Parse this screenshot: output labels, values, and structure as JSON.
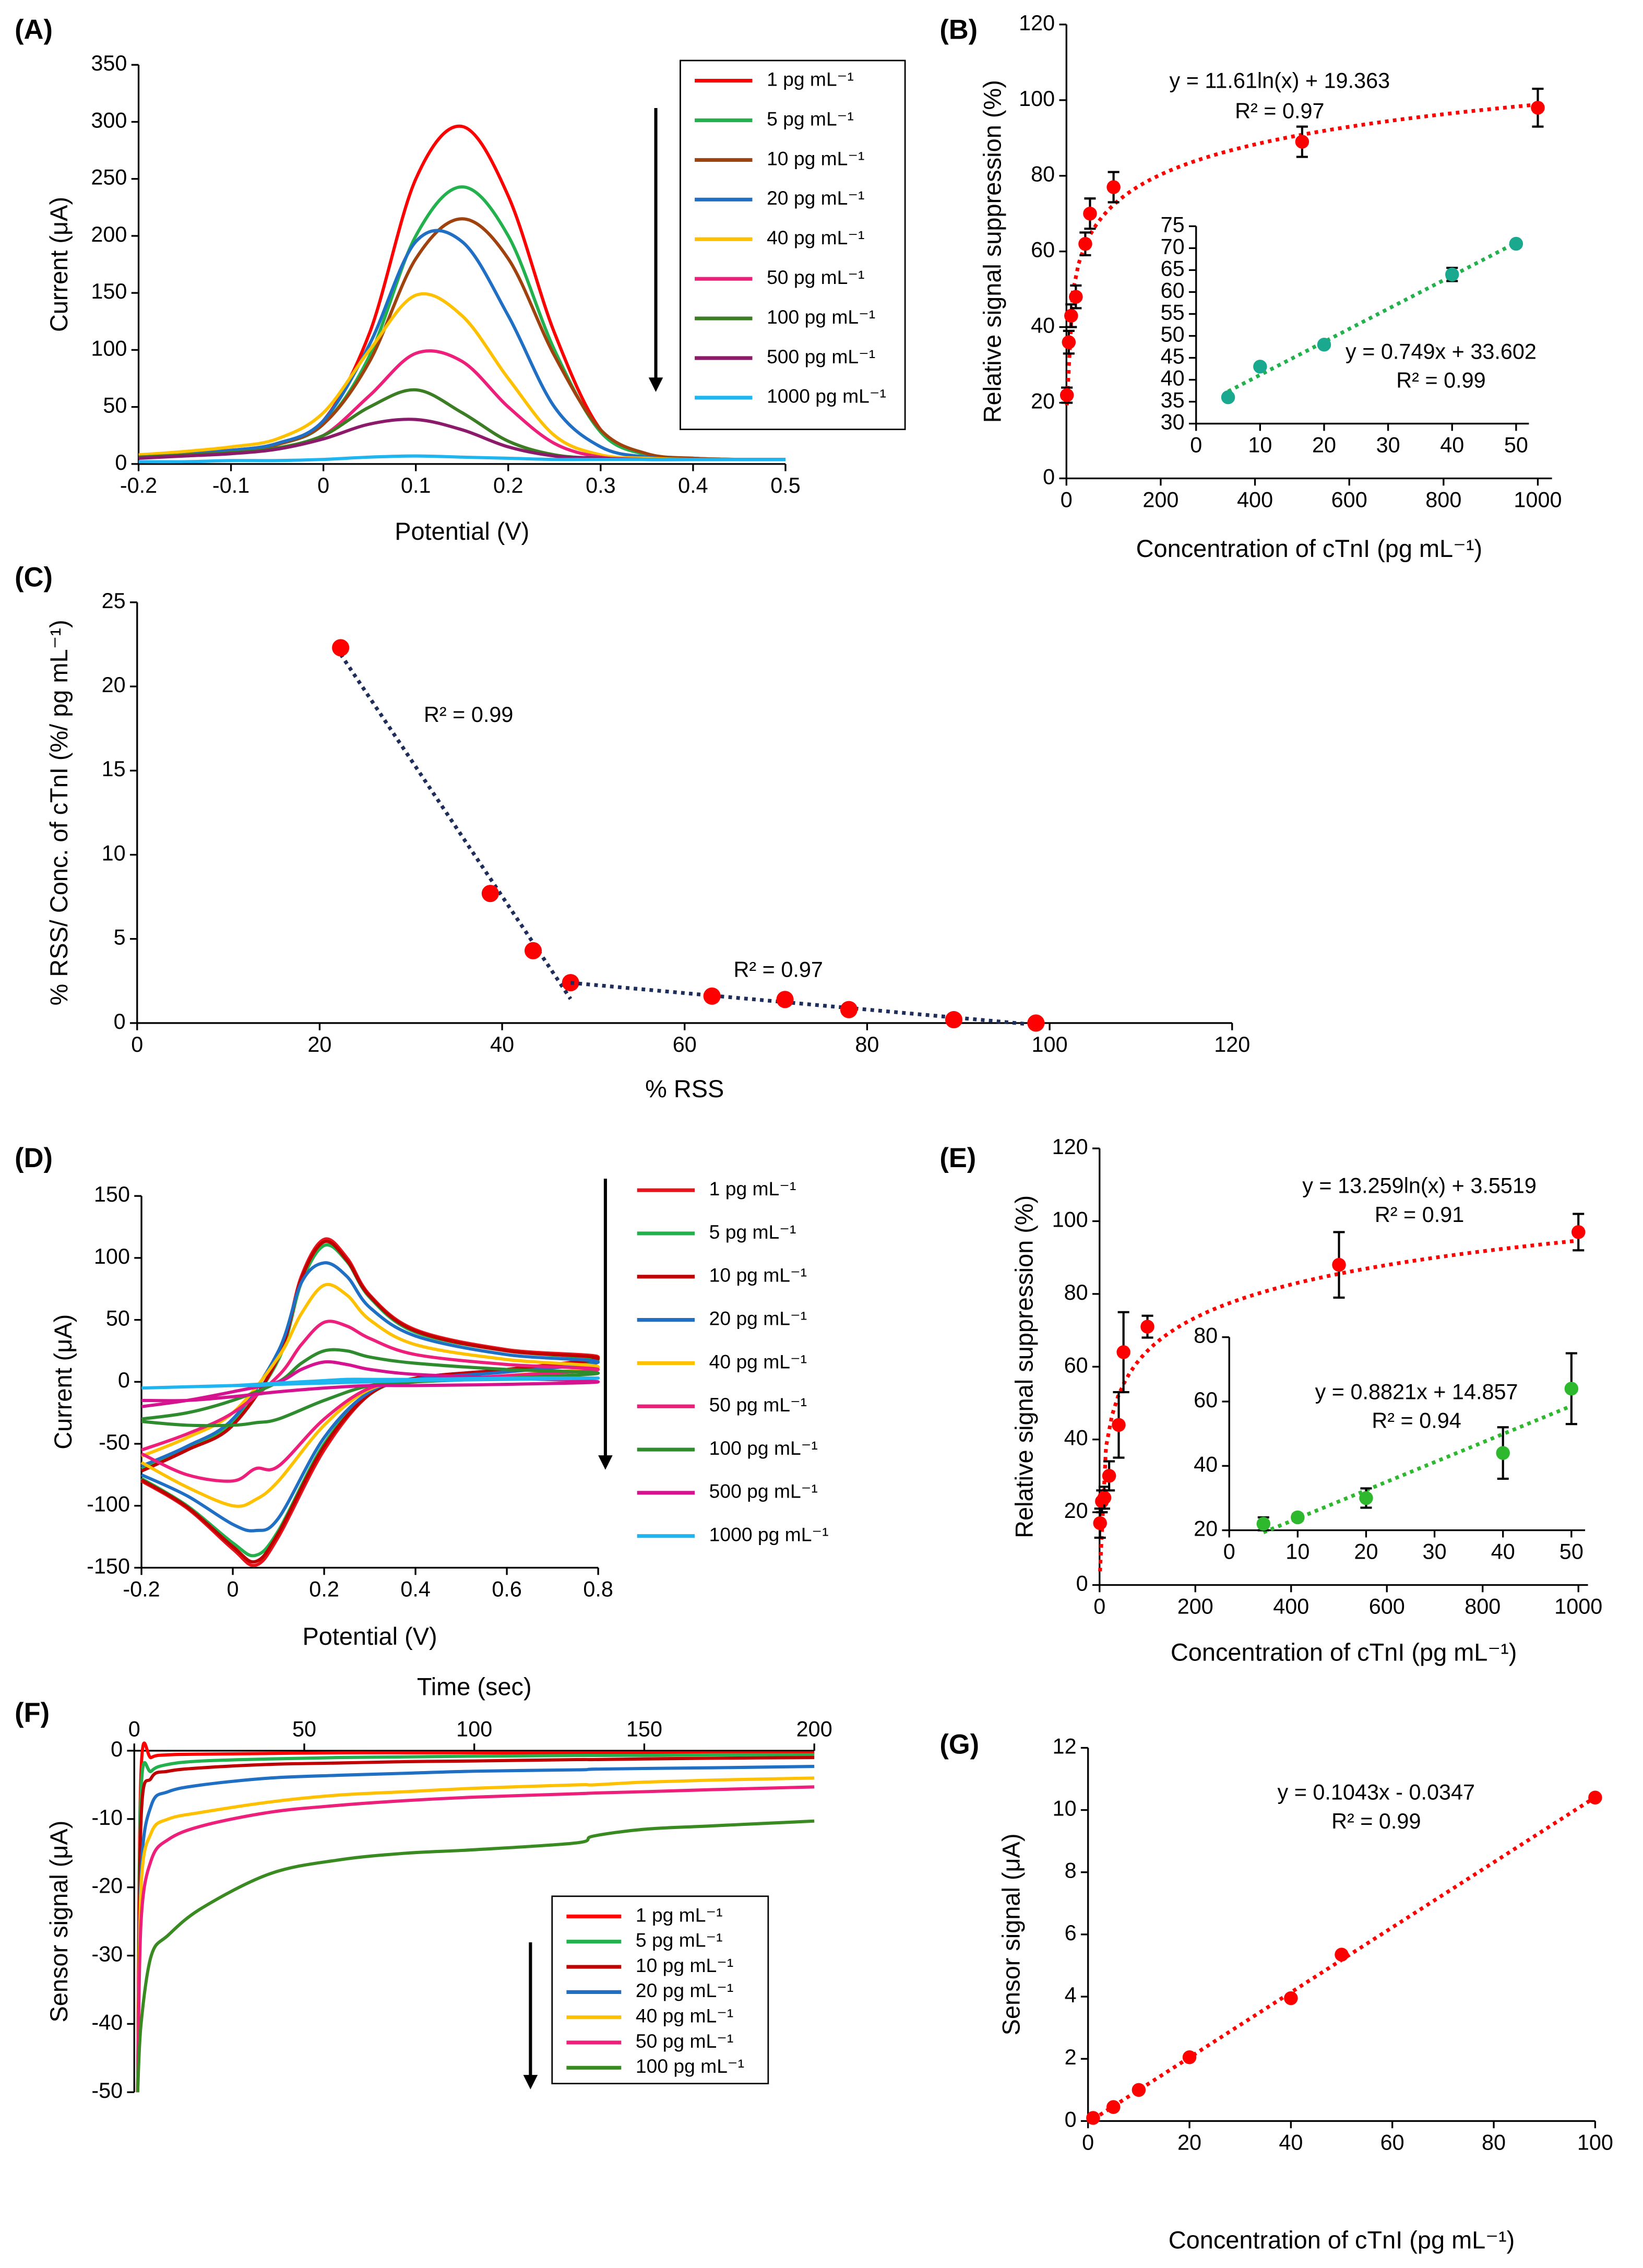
{
  "chart_data": [
    {
      "type": "line",
      "panel_label": "(A)",
      "xlabel": "Potential (V)",
      "ylabel": "Current (μA)",
      "xlim": [
        -0.2,
        0.5
      ],
      "ylim": [
        0,
        350
      ],
      "xticks": [
        -0.2,
        -0.1,
        0,
        0.1,
        0.2,
        0.3,
        0.4,
        0.5
      ],
      "yticks": [
        0,
        50,
        100,
        150,
        200,
        250,
        300,
        350
      ],
      "legend": true,
      "x": [
        -0.2,
        -0.15,
        -0.1,
        -0.05,
        0,
        0.05,
        0.1,
        0.15,
        0.2,
        0.25,
        0.3,
        0.35,
        0.4,
        0.45,
        0.5
      ],
      "series": [
        {
          "name": "1 pg mL⁻¹",
          "color": "#ff0000",
          "values": [
            8,
            10,
            12,
            18,
            38,
            115,
            250,
            296,
            235,
            115,
            30,
            8,
            5,
            4,
            4
          ]
        },
        {
          "name": "5 pg mL⁻¹",
          "color": "#22b14c",
          "values": [
            7,
            9,
            11,
            17,
            35,
            95,
            200,
            243,
            200,
            100,
            28,
            8,
            5,
            4,
            4
          ]
        },
        {
          "name": "10 pg mL⁻¹",
          "color": "#a0420d",
          "values": [
            7,
            9,
            11,
            17,
            35,
            90,
            180,
            215,
            180,
            95,
            30,
            9,
            5,
            4,
            4
          ]
        },
        {
          "name": "20 pg mL⁻¹",
          "color": "#1f6fc5",
          "values": [
            7,
            9,
            12,
            18,
            38,
            105,
            195,
            195,
            130,
            50,
            15,
            6,
            4,
            4,
            4
          ]
        },
        {
          "name": "40 pg mL⁻¹",
          "color": "#ffc000",
          "values": [
            8,
            11,
            15,
            22,
            45,
            100,
            148,
            130,
            75,
            25,
            8,
            5,
            4,
            4,
            4
          ]
        },
        {
          "name": "50 pg mL⁻¹",
          "color": "#ee1f7a",
          "values": [
            6,
            8,
            10,
            14,
            25,
            60,
            97,
            90,
            50,
            18,
            6,
            4,
            4,
            4,
            4
          ]
        },
        {
          "name": "100 pg mL⁻¹",
          "color": "#3a7d22",
          "values": [
            6,
            8,
            10,
            14,
            25,
            50,
            65,
            45,
            20,
            8,
            5,
            4,
            4,
            4,
            4
          ]
        },
        {
          "name": "500 pg mL⁻¹",
          "color": "#8b1a6b",
          "values": [
            5,
            7,
            9,
            13,
            22,
            35,
            39,
            30,
            15,
            7,
            5,
            4,
            4,
            4,
            4
          ]
        },
        {
          "name": "1000 pg mL⁻¹",
          "color": "#1fb5f0",
          "values": [
            2,
            2,
            3,
            3,
            4,
            6,
            7,
            6,
            5,
            4,
            4,
            4,
            4,
            4,
            4
          ]
        }
      ]
    },
    {
      "type": "scatter",
      "panel_label": "(B)",
      "xlabel": "Concentration of cTnI (pg mL⁻¹)",
      "ylabel": "Relative signal suppression (%)",
      "xlim": [
        0,
        1030
      ],
      "ylim": [
        0,
        120
      ],
      "xticks": [
        0,
        200,
        400,
        600,
        800,
        1000
      ],
      "yticks": [
        0,
        20,
        40,
        60,
        80,
        100,
        120
      ],
      "annotations": [
        "y = 11.61ln(x) + 19.363",
        "R² = 0.97"
      ],
      "series": [
        {
          "color": "#ff0000",
          "trendline": "log",
          "trendline_color": "#ff0000",
          "x": [
            1,
            5,
            10,
            20,
            40,
            50,
            100,
            500,
            1000
          ],
          "values": [
            22,
            36,
            43,
            48,
            62,
            70,
            77,
            89,
            98
          ],
          "errors": [
            2,
            3,
            3,
            3,
            3,
            4,
            4,
            4,
            5
          ]
        }
      ],
      "inset": {
        "type": "scatter",
        "xlim": [
          0,
          52
        ],
        "ylim": [
          30,
          75
        ],
        "xticks": [
          0,
          10,
          20,
          30,
          40,
          50
        ],
        "yticks": [
          30,
          35,
          40,
          45,
          50,
          55,
          60,
          65,
          70,
          75
        ],
        "annotations": [
          "y = 0.749x + 33.602",
          "R² = 0.99"
        ],
        "series": [
          {
            "color": "#1aa88f",
            "trendline": "linear",
            "trendline_color": "#22b14c",
            "x": [
              5,
              10,
              20,
              40,
              50
            ],
            "values": [
              36,
              43,
              48,
              64,
              71
            ],
            "errors": [
              0.5,
              0.5,
              0.5,
              1.5,
              0.5
            ]
          }
        ]
      }
    },
    {
      "type": "scatter",
      "panel_label": "(C)",
      "xlabel": "% RSS",
      "ylabel": "% RSS/ Conc. of cTnI (%/ pg mL⁻¹)",
      "xlim": [
        0,
        120
      ],
      "ylim": [
        0,
        25
      ],
      "xticks": [
        0,
        20,
        40,
        60,
        80,
        100,
        120
      ],
      "yticks": [
        0,
        5,
        10,
        15,
        20,
        25
      ],
      "annotations": [
        "R² = 0.99",
        "R² = 0.97"
      ],
      "series": [
        {
          "color": "#ff0000",
          "trendline": "linear",
          "trendline_color": "#1f2d5a",
          "x": [
            22.3,
            38.7,
            43.4,
            47.5
          ],
          "values": [
            22.3,
            7.7,
            4.3,
            2.4
          ]
        },
        {
          "color": "#ff0000",
          "trendline": "linear",
          "trendline_color": "#1f2d5a",
          "x": [
            63,
            71,
            78,
            89.5,
            98.5
          ],
          "values": [
            1.6,
            1.4,
            0.8,
            0.2,
            0
          ]
        }
      ]
    },
    {
      "type": "line",
      "panel_label": "(D)",
      "xlabel": "Potential (V)",
      "ylabel": "Current (μA)",
      "xlim": [
        -0.2,
        0.8
      ],
      "ylim": [
        -150,
        150
      ],
      "xticks": [
        -0.2,
        0,
        0.2,
        0.4,
        0.6,
        0.8
      ],
      "yticks": [
        -150,
        -100,
        -50,
        0,
        50,
        100,
        150
      ],
      "legend": true,
      "x": [
        -0.2,
        -0.1,
        0,
        0.1,
        0.15,
        0.2,
        0.25,
        0.3,
        0.4,
        0.6,
        0.8,
        0.6,
        0.4,
        0.3,
        0.2,
        0.1,
        0.05,
        0,
        -0.1,
        -0.2
      ],
      "series": [
        {
          "name": "1 pg mL⁻¹",
          "color": "#e8141b",
          "values": [
            -72,
            -55,
            -35,
            20,
            85,
            115,
            100,
            70,
            42,
            26,
            20,
            10,
            3,
            -10,
            -55,
            -125,
            -148,
            -135,
            -102,
            -80
          ]
        },
        {
          "name": "5 pg mL⁻¹",
          "color": "#22b14c",
          "values": [
            -70,
            -53,
            -33,
            18,
            80,
            110,
            97,
            68,
            40,
            25,
            18,
            9,
            2,
            -10,
            -50,
            -120,
            -140,
            -130,
            -100,
            -78
          ]
        },
        {
          "name": "10 pg mL⁻¹",
          "color": "#c00000",
          "values": [
            -72,
            -55,
            -35,
            20,
            83,
            113,
            98,
            69,
            41,
            25,
            19,
            10,
            3,
            -10,
            -52,
            -122,
            -145,
            -133,
            -101,
            -79
          ]
        },
        {
          "name": "20 pg mL⁻¹",
          "color": "#1f6fc5",
          "values": [
            -68,
            -52,
            -30,
            25,
            80,
            96,
            85,
            60,
            37,
            22,
            16,
            8,
            2,
            -8,
            -45,
            -110,
            -120,
            -115,
            -92,
            -75
          ]
        },
        {
          "name": "40 pg mL⁻¹",
          "color": "#ffc000",
          "values": [
            -60,
            -45,
            -25,
            20,
            55,
            78,
            70,
            50,
            30,
            18,
            12,
            5,
            0,
            -6,
            -35,
            -80,
            -95,
            -100,
            -85,
            -65
          ]
        },
        {
          "name": "50 pg mL⁻¹",
          "color": "#ee1f7a",
          "values": [
            -55,
            -42,
            -25,
            5,
            30,
            48,
            45,
            35,
            22,
            14,
            10,
            5,
            0,
            -5,
            -30,
            -68,
            -70,
            -80,
            -75,
            -58
          ]
        },
        {
          "name": "100 pg mL⁻¹",
          "color": "#2e8b2e",
          "values": [
            -30,
            -25,
            -15,
            0,
            15,
            25,
            25,
            20,
            15,
            10,
            7,
            3,
            0,
            -3,
            -15,
            -30,
            -33,
            -35,
            -35,
            -32
          ]
        },
        {
          "name": "500 pg mL⁻¹",
          "color": "#d6138f",
          "values": [
            -20,
            -15,
            -8,
            0,
            10,
            16,
            14,
            10,
            6,
            3,
            0,
            -2,
            -3,
            -3,
            -5,
            -8,
            -10,
            -12,
            -15,
            -15
          ]
        },
        {
          "name": "1000 pg mL⁻¹",
          "color": "#1fb5f0",
          "values": [
            -5,
            -4,
            -3,
            -1,
            0,
            1,
            2,
            2,
            2,
            3,
            3,
            2,
            1,
            0,
            -1,
            -2,
            -3,
            -3,
            -4,
            -5
          ]
        }
      ]
    },
    {
      "type": "scatter",
      "panel_label": "(E)",
      "xlabel": "Concentration of cTnI (pg mL⁻¹)",
      "ylabel": "Relative signal suppression (%)",
      "xlim": [
        0,
        1020
      ],
      "ylim": [
        0,
        120
      ],
      "xticks": [
        0,
        200,
        400,
        600,
        800,
        1000
      ],
      "yticks": [
        0,
        20,
        40,
        60,
        80,
        100,
        120
      ],
      "annotations": [
        "y = 13.259ln(x) + 3.5519",
        "R² = 0.91"
      ],
      "series": [
        {
          "color": "#ff0000",
          "trendline": "log",
          "trendline_color": "#ff0000",
          "x": [
            1,
            5,
            10,
            20,
            40,
            50,
            100,
            500,
            1000
          ],
          "values": [
            17,
            23,
            24,
            30,
            44,
            64,
            71,
            88,
            97
          ],
          "errors": [
            4,
            3,
            3,
            4,
            9,
            11,
            3,
            9,
            5
          ]
        }
      ],
      "inset": {
        "type": "scatter",
        "xlim": [
          0,
          52
        ],
        "ylim": [
          20,
          80
        ],
        "xticks": [
          0,
          10,
          20,
          30,
          40,
          50
        ],
        "yticks": [
          20,
          40,
          60,
          80
        ],
        "annotations": [
          "y = 0.8821x + 14.857",
          "R² = 0.94"
        ],
        "series": [
          {
            "color": "#2eb82e",
            "trendline": "linear",
            "trendline_color": "#2eb82e",
            "x": [
              5,
              10,
              20,
              40,
              50
            ],
            "values": [
              22,
              24,
              30,
              44,
              64
            ],
            "errors": [
              2,
              1,
              3,
              8,
              11
            ]
          }
        ]
      }
    },
    {
      "type": "line",
      "panel_label": "(F)",
      "xlabel": "Time (sec)",
      "ylabel": "Sensor signal (μA)",
      "x_axis_position": "top",
      "xlim": [
        0,
        200
      ],
      "ylim": [
        -50,
        0
      ],
      "xticks": [
        0,
        50,
        100,
        150,
        200
      ],
      "yticks": [
        -50,
        -40,
        -30,
        -20,
        -10,
        0
      ],
      "legend": true,
      "x": [
        1,
        2,
        5,
        10,
        20,
        40,
        60,
        80,
        100,
        130,
        135,
        150,
        170,
        200
      ],
      "series": [
        {
          "name": "1 pg mL⁻¹",
          "color": "#ff0000",
          "values": [
            -50,
            -3,
            -1,
            -0.6,
            -0.5,
            -0.4,
            -0.3,
            -0.3,
            -0.3,
            -0.3,
            -0.3,
            -0.3,
            -0.3,
            -0.3
          ]
        },
        {
          "name": "5 pg mL⁻¹",
          "color": "#22b14c",
          "values": [
            -50,
            -6,
            -3,
            -2,
            -1.5,
            -1.2,
            -1,
            -0.9,
            -0.8,
            -0.7,
            -0.7,
            -0.7,
            -0.6,
            -0.6
          ]
        },
        {
          "name": "10 pg mL⁻¹",
          "color": "#c00000",
          "values": [
            -50,
            -10,
            -4,
            -3,
            -2.5,
            -2,
            -1.8,
            -1.6,
            -1.5,
            -1.3,
            -1.3,
            -1.2,
            -1.1,
            -1
          ]
        },
        {
          "name": "20 pg mL⁻¹",
          "color": "#1f6fc5",
          "values": [
            -50,
            -18,
            -8,
            -6,
            -5,
            -4,
            -3.6,
            -3.3,
            -3,
            -2.8,
            -2.7,
            -2.6,
            -2.5,
            -2.3
          ]
        },
        {
          "name": "40 pg mL⁻¹",
          "color": "#ffc000",
          "values": [
            -50,
            -20,
            -12,
            -10,
            -9,
            -7.5,
            -6.5,
            -6,
            -5.5,
            -5,
            -5,
            -4.6,
            -4.3,
            -4
          ]
        },
        {
          "name": "50 pg mL⁻¹",
          "color": "#ee1f7a",
          "values": [
            -50,
            -25,
            -16,
            -13,
            -11,
            -9,
            -8,
            -7.3,
            -6.8,
            -6.3,
            -6.2,
            -6,
            -5.7,
            -5.3
          ]
        },
        {
          "name": "100 pg mL⁻¹",
          "color": "#3a8a22",
          "values": [
            -50,
            -40,
            -30,
            -27,
            -23,
            -18,
            -16,
            -15,
            -14.5,
            -13.5,
            -12.5,
            -11.5,
            -11,
            -10.3
          ]
        }
      ]
    },
    {
      "type": "scatter",
      "panel_label": "(G)",
      "xlabel": "Concentration of cTnI (pg mL⁻¹)",
      "ylabel": "Sensor signal (μA)",
      "xlim": [
        0,
        100
      ],
      "ylim": [
        0,
        12
      ],
      "xticks": [
        0,
        20,
        40,
        60,
        80,
        100
      ],
      "yticks": [
        0,
        2,
        4,
        6,
        8,
        10,
        12
      ],
      "annotations": [
        "y = 0.1043x - 0.0347",
        "R² = 0.99"
      ],
      "series": [
        {
          "color": "#ff0000",
          "trendline": "linear",
          "trendline_color": "#ff0000",
          "x": [
            1,
            5,
            10,
            20,
            40,
            50,
            100
          ],
          "values": [
            0.1,
            0.45,
            1,
            2.05,
            3.95,
            5.35,
            10.4
          ]
        }
      ]
    }
  ]
}
